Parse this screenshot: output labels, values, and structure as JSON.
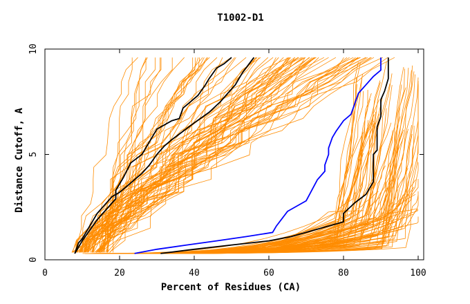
{
  "chart_data": {
    "type": "line",
    "title": "T1002-D1",
    "xlabel": "Percent of Residues (CA)",
    "ylabel": "Distance Cutoff, A",
    "xlim": [
      0,
      100
    ],
    "ylim": [
      0,
      10
    ],
    "x_ticks": [
      "0",
      "20",
      "40",
      "60",
      "80",
      "100"
    ],
    "y_ticks": [
      "0",
      "5",
      "10"
    ],
    "background_series_color": "#ff8c00",
    "series": [
      {
        "name": "black-left",
        "color": "#000000",
        "x": [
          8,
          9,
          10,
          12,
          14,
          16,
          18,
          20,
          22,
          24,
          26,
          28,
          30,
          32,
          34,
          37,
          40,
          44,
          47,
          49,
          51,
          53,
          56
        ],
        "y": [
          0.3,
          0.8,
          1.0,
          1.6,
          2.2,
          2.6,
          3.0,
          3.2,
          3.5,
          3.8,
          4.1,
          4.5,
          5.0,
          5.4,
          5.7,
          6.1,
          6.5,
          7.0,
          7.5,
          7.9,
          8.3,
          8.9,
          9.6
        ]
      },
      {
        "name": "black-left-2",
        "color": "#000000",
        "x": [
          8,
          10,
          12,
          14,
          16,
          18,
          19,
          19,
          21,
          23,
          26,
          28,
          30,
          32,
          34,
          36,
          37,
          39,
          41,
          43,
          44,
          46,
          48,
          50
        ],
        "y": [
          0.3,
          0.9,
          1.4,
          1.9,
          2.3,
          2.7,
          2.9,
          3.3,
          3.9,
          4.6,
          5.0,
          5.6,
          6.2,
          6.4,
          6.6,
          6.7,
          7.2,
          7.5,
          7.8,
          8.3,
          8.6,
          9.1,
          9.3,
          9.6
        ]
      },
      {
        "name": "blue",
        "color": "#0000ff",
        "x": [
          24,
          30,
          38,
          46,
          54,
          61,
          62,
          65,
          70,
          73,
          75,
          75,
          76,
          76,
          77,
          78,
          80,
          82,
          83,
          84,
          86,
          88,
          90,
          90
        ],
        "y": [
          0.3,
          0.5,
          0.7,
          0.9,
          1.1,
          1.3,
          1.6,
          2.3,
          2.8,
          3.8,
          4.2,
          4.5,
          5.0,
          5.3,
          5.8,
          6.1,
          6.6,
          6.9,
          7.4,
          7.9,
          8.3,
          8.7,
          9.0,
          9.6
        ]
      },
      {
        "name": "black-right",
        "color": "#000000",
        "x": [
          31,
          40,
          50,
          60,
          66,
          72,
          78,
          80,
          80,
          83,
          86,
          88,
          88,
          89,
          89,
          90,
          90,
          91,
          92,
          92
        ],
        "y": [
          0.3,
          0.5,
          0.7,
          0.9,
          1.1,
          1.4,
          1.7,
          1.8,
          2.2,
          2.7,
          3.1,
          3.7,
          5.0,
          5.2,
          6.3,
          6.8,
          7.6,
          8.0,
          8.6,
          9.6
        ]
      }
    ]
  }
}
